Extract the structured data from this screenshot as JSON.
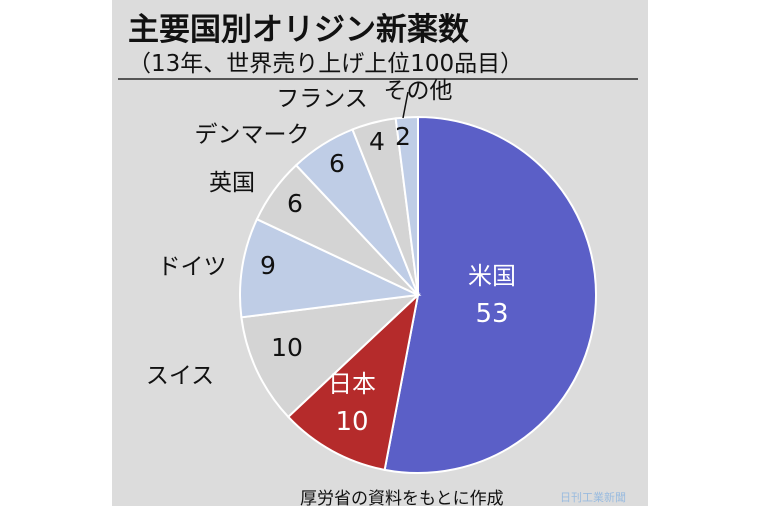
{
  "header": {
    "title": "主要国別オリジン新薬数",
    "subtitle": "（13年、世界売り上げ上位100品目）"
  },
  "footer": {
    "source": "厚労省の資料をもとに作成",
    "watermark": "日刊工業新聞"
  },
  "chart_data": {
    "type": "pie",
    "title": "主要国別オリジン新薬数",
    "subtitle": "（13年、世界売り上げ上位100品目）",
    "total": 100,
    "slices": [
      {
        "label": "米国",
        "value": 53,
        "color": "#5b5fc7",
        "text_color": "#ffffff",
        "label_inside": true
      },
      {
        "label": "日本",
        "value": 10,
        "color": "#b52b2b",
        "text_color": "#ffffff",
        "label_inside": true
      },
      {
        "label": "スイス",
        "value": 10,
        "color": "#d4d4d4",
        "text_color": "#111111",
        "label_inside": false
      },
      {
        "label": "ドイツ",
        "value": 9,
        "color": "#bfcde6",
        "text_color": "#111111",
        "label_inside": false
      },
      {
        "label": "英国",
        "value": 6,
        "color": "#d4d4d4",
        "text_color": "#111111",
        "label_inside": false
      },
      {
        "label": "デンマーク",
        "value": 6,
        "color": "#bfcde6",
        "text_color": "#111111",
        "label_inside": false
      },
      {
        "label": "フランス",
        "value": 4,
        "color": "#d4d4d4",
        "text_color": "#111111",
        "label_inside": false
      },
      {
        "label": "その他",
        "value": 2,
        "color": "#bfcde6",
        "text_color": "#111111",
        "label_inside": false
      }
    ]
  }
}
